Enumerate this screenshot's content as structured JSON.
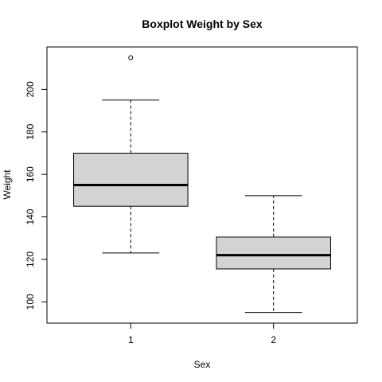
{
  "chart_data": {
    "type": "boxplot",
    "title": "Boxplot Weight by Sex",
    "xlabel": "Sex",
    "ylabel": "Weight",
    "categories": [
      "1",
      "2"
    ],
    "ylim": [
      90,
      220
    ],
    "yticks": [
      100,
      120,
      140,
      160,
      180,
      200
    ],
    "grid": false,
    "legend": "none",
    "box_fill": "#d3d3d3",
    "boxes": [
      {
        "category": "1",
        "whisker_low": 123,
        "q1": 145,
        "median": 155,
        "q3": 170,
        "whisker_high": 195,
        "outliers": [
          215
        ]
      },
      {
        "category": "2",
        "whisker_low": 95,
        "q1": 115.5,
        "median": 122,
        "q3": 130.5,
        "whisker_high": 150,
        "outliers": []
      }
    ]
  }
}
